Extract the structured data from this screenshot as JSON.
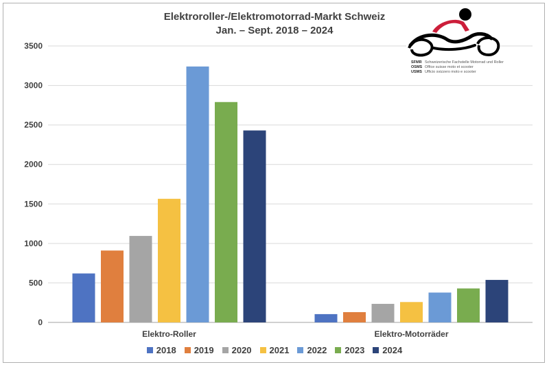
{
  "chart_data": {
    "type": "bar",
    "title": "Elektroroller-/Elektromotorrad-Markt Schweiz",
    "subtitle": "Jan. – Sept. 2018 – 2024",
    "categories": [
      "Elektro-Roller",
      "Elektro-Motorräder"
    ],
    "series": [
      {
        "name": "2018",
        "color": "#4e73c2",
        "values": [
          620,
          105
        ]
      },
      {
        "name": "2019",
        "color": "#e07f3e",
        "values": [
          910,
          130
        ]
      },
      {
        "name": "2020",
        "color": "#a5a5a5",
        "values": [
          1095,
          235
        ]
      },
      {
        "name": "2021",
        "color": "#f5c142",
        "values": [
          1565,
          258
        ]
      },
      {
        "name": "2022",
        "color": "#6b9ad6",
        "values": [
          3240,
          378
        ]
      },
      {
        "name": "2023",
        "color": "#79ac4f",
        "values": [
          2790,
          430
        ]
      },
      {
        "name": "2024",
        "color": "#2c4479",
        "values": [
          2430,
          538
        ]
      }
    ],
    "ylim": [
      0,
      3500
    ],
    "yticks": [
      "0",
      "500",
      "1000",
      "1500",
      "2000",
      "2500",
      "3000",
      "3500"
    ],
    "grid": true,
    "legend": "bottom"
  },
  "logo": {
    "r1_abbr": "SFMR",
    "r1_text": "Schweizerische Fachstelle Motorrad und Roller",
    "r2_abbr": "OSMS",
    "r2_text": "Office suisse moto et scooter",
    "r3_abbr": "USMS",
    "r3_text": "Ufficio svizzero moto e scooter"
  }
}
